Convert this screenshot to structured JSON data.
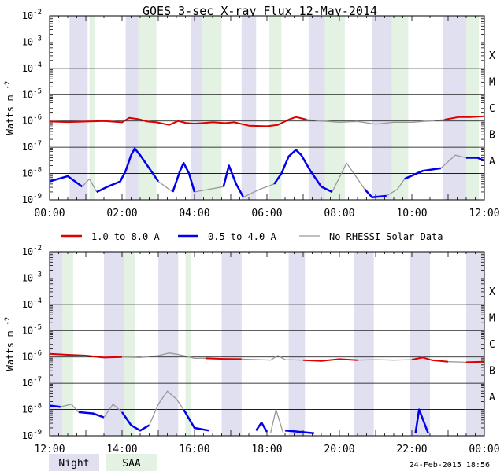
{
  "chart_data": {
    "type": "line",
    "title": "GOES 3-sec X-ray Flux   12-May-2014",
    "ylabel": "Watts m",
    "ylabel_exp": "-2",
    "yscale": "log",
    "ylim_exp": [
      -9,
      -2
    ],
    "y_tick_exponents": [
      -9,
      -8,
      -7,
      -6,
      -5,
      -4,
      -3,
      -2
    ],
    "flare_classes": [
      {
        "label": "A",
        "exp": -8
      },
      {
        "label": "B",
        "exp": -7
      },
      {
        "label": "C",
        "exp": -6
      },
      {
        "label": "M",
        "exp": -5
      },
      {
        "label": "X",
        "exp": -4
      }
    ],
    "legend": [
      {
        "key": "long",
        "label": "1.0 to 8.0 A",
        "color": "#dd0000"
      },
      {
        "key": "short",
        "label": "0.5 to 4.0 A",
        "color": "#0000ee"
      },
      {
        "key": "norhessi",
        "label": "No RHESSI Solar Data",
        "color": "#999999"
      }
    ],
    "shading_legend": [
      {
        "key": "night",
        "label": "Night",
        "color": "#e0e0f0"
      },
      {
        "key": "saa",
        "label": "SAA",
        "color": "#e4f2e4"
      }
    ],
    "footer": "24-Feb-2015 18:56",
    "panels": [
      {
        "x_range_hours": [
          0,
          12
        ],
        "x_ticks": [
          {
            "h": 0,
            "label": "00:00"
          },
          {
            "h": 2,
            "label": "02:00"
          },
          {
            "h": 4,
            "label": "04:00"
          },
          {
            "h": 6,
            "label": "06:00"
          },
          {
            "h": 8,
            "label": "08:00"
          },
          {
            "h": 10,
            "label": "10:00"
          },
          {
            "h": 12,
            "label": "12:00"
          }
        ],
        "night": [
          [
            0.55,
            1.05
          ],
          [
            2.1,
            2.45
          ],
          [
            3.9,
            4.2
          ],
          [
            5.3,
            5.7
          ],
          [
            7.15,
            7.6
          ],
          [
            8.9,
            9.45
          ],
          [
            10.85,
            11.5
          ]
        ],
        "saa": [
          [
            1.1,
            1.25
          ],
          [
            2.45,
            2.95
          ],
          [
            4.2,
            4.75
          ],
          [
            6.05,
            6.4
          ],
          [
            7.6,
            8.15
          ],
          [
            9.45,
            9.9
          ],
          [
            11.5,
            11.85
          ]
        ],
        "long": [
          {
            "c": "r",
            "pts": [
              [
                0,
                -6.02
              ],
              [
                0.5,
                -6.04
              ],
              [
                1.0,
                -6.02
              ],
              [
                1.5,
                -6.0
              ],
              [
                2.0,
                -6.05
              ],
              [
                2.2,
                -5.88
              ],
              [
                2.45,
                -5.93
              ],
              [
                2.7,
                -6.02
              ],
              [
                2.95,
                -6.05
              ],
              [
                3.3,
                -6.15
              ],
              [
                3.55,
                -6.0
              ],
              [
                3.75,
                -6.07
              ],
              [
                4.0,
                -6.1
              ],
              [
                4.5,
                -6.05
              ],
              [
                4.85,
                -6.08
              ],
              [
                5.1,
                -6.05
              ],
              [
                5.5,
                -6.18
              ],
              [
                6.0,
                -6.2
              ],
              [
                6.3,
                -6.15
              ],
              [
                6.6,
                -5.95
              ],
              [
                6.8,
                -5.85
              ],
              [
                7.1,
                -5.95
              ]
            ]
          },
          {
            "c": "g",
            "pts": [
              [
                7.1,
                -5.95
              ],
              [
                7.5,
                -6.0
              ],
              [
                8.0,
                -6.05
              ],
              [
                8.5,
                -6.02
              ],
              [
                9.0,
                -6.12
              ],
              [
                9.5,
                -6.05
              ],
              [
                10.0,
                -6.05
              ],
              [
                10.5,
                -6.0
              ],
              [
                10.9,
                -5.95
              ]
            ]
          },
          {
            "c": "r",
            "pts": [
              [
                10.9,
                -5.95
              ],
              [
                11.3,
                -5.85
              ],
              [
                11.6,
                -5.85
              ],
              [
                12.0,
                -5.82
              ]
            ]
          }
        ],
        "short": [
          {
            "c": "b",
            "pts": [
              [
                0,
                -8.3
              ],
              [
                0.5,
                -8.1
              ],
              [
                0.9,
                -8.5
              ]
            ]
          },
          {
            "c": "g",
            "pts": [
              [
                0.9,
                -8.5
              ],
              [
                1.1,
                -8.2
              ],
              [
                1.3,
                -8.7
              ]
            ]
          },
          {
            "c": "b",
            "pts": [
              [
                1.3,
                -8.7
              ],
              [
                1.6,
                -8.5
              ],
              [
                1.95,
                -8.3
              ],
              [
                2.1,
                -7.9
              ],
              [
                2.25,
                -7.3
              ],
              [
                2.35,
                -7.05
              ],
              [
                2.5,
                -7.3
              ],
              [
                2.8,
                -7.9
              ],
              [
                3.0,
                -8.3
              ]
            ]
          },
          {
            "c": "g",
            "pts": [
              [
                3.0,
                -8.3
              ],
              [
                3.2,
                -8.5
              ],
              [
                3.4,
                -8.7
              ]
            ]
          },
          {
            "c": "b",
            "pts": [
              [
                3.4,
                -8.7
              ],
              [
                3.6,
                -7.9
              ],
              [
                3.7,
                -7.6
              ],
              [
                3.85,
                -8.0
              ],
              [
                4.0,
                -8.7
              ]
            ]
          },
          {
            "c": "g",
            "pts": [
              [
                4.0,
                -8.7
              ],
              [
                4.4,
                -8.6
              ],
              [
                4.8,
                -8.5
              ]
            ]
          },
          {
            "c": "b",
            "pts": [
              [
                4.8,
                -8.5
              ],
              [
                4.95,
                -7.7
              ],
              [
                5.15,
                -8.4
              ],
              [
                5.35,
                -8.9
              ]
            ]
          },
          {
            "c": "g",
            "pts": [
              [
                5.35,
                -8.9
              ],
              [
                5.8,
                -8.6
              ],
              [
                6.2,
                -8.4
              ]
            ]
          },
          {
            "c": "b",
            "pts": [
              [
                6.2,
                -8.4
              ],
              [
                6.4,
                -8.0
              ],
              [
                6.6,
                -7.35
              ],
              [
                6.8,
                -7.1
              ],
              [
                6.95,
                -7.3
              ],
              [
                7.2,
                -7.9
              ],
              [
                7.5,
                -8.5
              ],
              [
                7.8,
                -8.7
              ]
            ]
          },
          {
            "c": "g",
            "pts": [
              [
                7.8,
                -8.7
              ],
              [
                8.2,
                -7.6
              ],
              [
                8.4,
                -8.0
              ],
              [
                8.7,
                -8.6
              ]
            ]
          },
          {
            "c": "b",
            "pts": [
              [
                8.7,
                -8.6
              ],
              [
                8.9,
                -8.9
              ],
              [
                9.3,
                -8.85
              ]
            ]
          },
          {
            "c": "g",
            "pts": [
              [
                9.3,
                -8.85
              ],
              [
                9.6,
                -8.6
              ],
              [
                9.8,
                -8.2
              ]
            ]
          },
          {
            "c": "b",
            "pts": [
              [
                9.8,
                -8.2
              ],
              [
                10.3,
                -7.9
              ],
              [
                10.8,
                -7.8
              ]
            ]
          },
          {
            "c": "g",
            "pts": [
              [
                10.8,
                -7.8
              ],
              [
                11.2,
                -7.3
              ],
              [
                11.5,
                -7.4
              ]
            ]
          },
          {
            "c": "b",
            "pts": [
              [
                11.5,
                -7.4
              ],
              [
                11.8,
                -7.4
              ],
              [
                12.0,
                -7.5
              ]
            ]
          }
        ]
      },
      {
        "x_range_hours": [
          12,
          24
        ],
        "x_ticks": [
          {
            "h": 12,
            "label": "12:00"
          },
          {
            "h": 14,
            "label": "14:00"
          },
          {
            "h": 16,
            "label": "16:00"
          },
          {
            "h": 18,
            "label": "18:00"
          },
          {
            "h": 20,
            "label": "20:00"
          },
          {
            "h": 22,
            "label": "22:00"
          },
          {
            "h": 24,
            "label": "00:00"
          }
        ],
        "night": [
          [
            12.0,
            12.35
          ],
          [
            13.5,
            14.05
          ],
          [
            15.0,
            15.55
          ],
          [
            16.75,
            17.3
          ],
          [
            18.6,
            19.05
          ],
          [
            20.4,
            20.95
          ],
          [
            21.95,
            22.5
          ],
          [
            23.5,
            24.0
          ]
        ],
        "saa": [
          [
            12.35,
            12.65
          ],
          [
            14.05,
            14.35
          ],
          [
            15.75,
            15.9
          ]
        ],
        "long": [
          {
            "c": "r",
            "pts": [
              [
                12.0,
                -5.88
              ],
              [
                12.5,
                -5.92
              ],
              [
                13.0,
                -5.95
              ],
              [
                13.5,
                -6.02
              ],
              [
                14.0,
                -6.0
              ]
            ]
          },
          {
            "c": "g",
            "pts": [
              [
                14.0,
                -6.0
              ],
              [
                14.5,
                -6.02
              ],
              [
                15.0,
                -5.95
              ],
              [
                15.3,
                -5.85
              ],
              [
                15.6,
                -5.92
              ],
              [
                16.0,
                -6.05
              ],
              [
                16.3,
                -6.05
              ]
            ]
          },
          {
            "c": "r",
            "pts": [
              [
                16.3,
                -6.05
              ],
              [
                16.8,
                -6.07
              ],
              [
                17.3,
                -6.08
              ]
            ]
          },
          {
            "c": "g",
            "pts": [
              [
                17.3,
                -6.08
              ],
              [
                17.8,
                -6.1
              ],
              [
                18.1,
                -6.12
              ],
              [
                18.3,
                -5.95
              ],
              [
                18.5,
                -6.1
              ],
              [
                19.0,
                -6.12
              ]
            ]
          },
          {
            "c": "r",
            "pts": [
              [
                19.0,
                -6.12
              ],
              [
                19.5,
                -6.15
              ],
              [
                20.0,
                -6.08
              ],
              [
                20.5,
                -6.12
              ]
            ]
          },
          {
            "c": "g",
            "pts": [
              [
                20.5,
                -6.12
              ],
              [
                21.0,
                -6.1
              ],
              [
                21.5,
                -6.12
              ],
              [
                22.0,
                -6.1
              ]
            ]
          },
          {
            "c": "r",
            "pts": [
              [
                22.0,
                -6.1
              ],
              [
                22.3,
                -6.02
              ],
              [
                22.55,
                -6.12
              ],
              [
                23.0,
                -6.18
              ]
            ]
          },
          {
            "c": "g",
            "pts": [
              [
                23.0,
                -6.18
              ],
              [
                23.5,
                -6.2
              ]
            ]
          },
          {
            "c": "r",
            "pts": [
              [
                23.5,
                -6.2
              ],
              [
                24.0,
                -6.18
              ]
            ]
          }
        ],
        "short": [
          {
            "c": "b",
            "pts": [
              [
                12.0,
                -7.85
              ],
              [
                12.3,
                -7.9
              ]
            ]
          },
          {
            "c": "g",
            "pts": [
              [
                12.3,
                -7.9
              ],
              [
                12.6,
                -7.8
              ],
              [
                12.8,
                -8.1
              ]
            ]
          },
          {
            "c": "b",
            "pts": [
              [
                12.8,
                -8.1
              ],
              [
                13.2,
                -8.15
              ],
              [
                13.5,
                -8.3
              ]
            ]
          },
          {
            "c": "g",
            "pts": [
              [
                13.5,
                -8.3
              ],
              [
                13.75,
                -7.8
              ],
              [
                14.0,
                -8.1
              ]
            ]
          },
          {
            "c": "b",
            "pts": [
              [
                14.0,
                -8.1
              ],
              [
                14.25,
                -8.6
              ],
              [
                14.5,
                -8.8
              ],
              [
                14.75,
                -8.6
              ]
            ]
          },
          {
            "c": "g",
            "pts": [
              [
                14.75,
                -8.6
              ],
              [
                15.0,
                -7.8
              ],
              [
                15.25,
                -7.3
              ],
              [
                15.5,
                -7.6
              ],
              [
                15.7,
                -8.0
              ]
            ]
          },
          {
            "c": "b",
            "pts": [
              [
                15.7,
                -8.0
              ],
              [
                16.0,
                -8.7
              ],
              [
                16.4,
                -8.8
              ]
            ]
          },
          {
            "c": "b",
            "pts": [
              [
                17.7,
                -8.8
              ],
              [
                17.85,
                -8.5
              ],
              [
                18.0,
                -8.85
              ]
            ]
          },
          {
            "c": "g",
            "pts": [
              [
                18.1,
                -8.9
              ],
              [
                18.25,
                -8.0
              ],
              [
                18.45,
                -8.9
              ]
            ]
          },
          {
            "c": "b",
            "pts": [
              [
                18.5,
                -8.8
              ],
              [
                19.3,
                -8.9
              ]
            ]
          },
          {
            "c": "b",
            "pts": [
              [
                22.1,
                -8.9
              ],
              [
                22.2,
                -8.0
              ],
              [
                22.45,
                -8.9
              ]
            ]
          }
        ]
      }
    ]
  }
}
